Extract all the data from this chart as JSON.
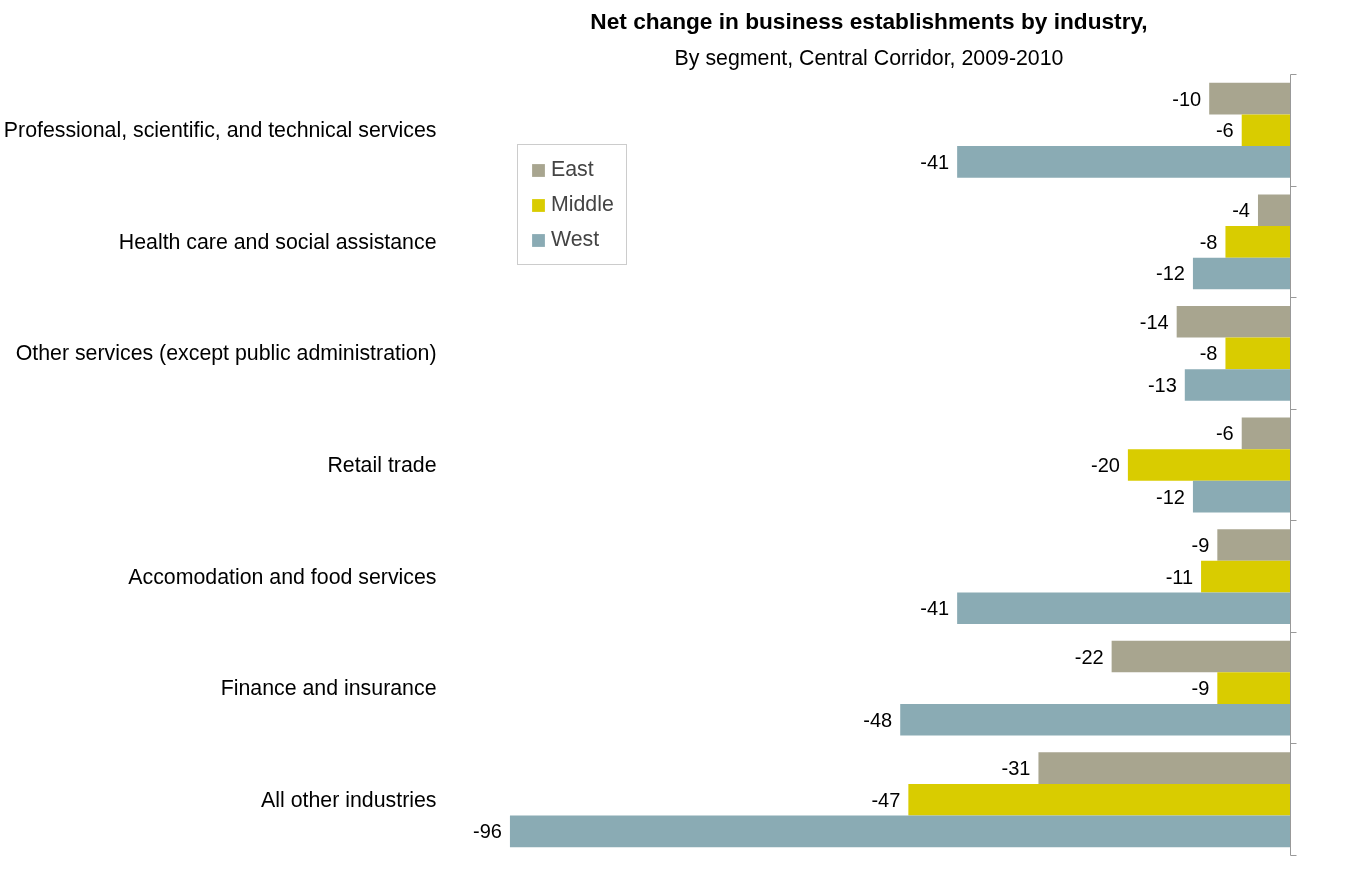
{
  "chart_data": {
    "type": "bar",
    "orientation": "horizontal",
    "title": "Net change in business establishments by industry,",
    "subtitle": "By segment, Central Corridor, 2009-2010",
    "categories": [
      "Professional, scientific, and technical services",
      "Health care and social assistance",
      "Other services (except public administration)",
      "Retail trade",
      "Accomodation and food services",
      "Finance and insurance",
      "All other industries"
    ],
    "series": [
      {
        "name": "East",
        "color": "#a8a58f",
        "values": [
          -10,
          -4,
          -14,
          -6,
          -9,
          -22,
          -31
        ]
      },
      {
        "name": "Middle",
        "color": "#d9cc00",
        "values": [
          -6,
          -8,
          -8,
          -20,
          -11,
          -9,
          -47
        ]
      },
      {
        "name": "West",
        "color": "#8aabb4",
        "values": [
          -41,
          -12,
          -13,
          -12,
          -41,
          -48,
          -96
        ]
      }
    ],
    "data_labels": true,
    "legend": "top left",
    "grid": false,
    "tick_labels": "y"
  }
}
